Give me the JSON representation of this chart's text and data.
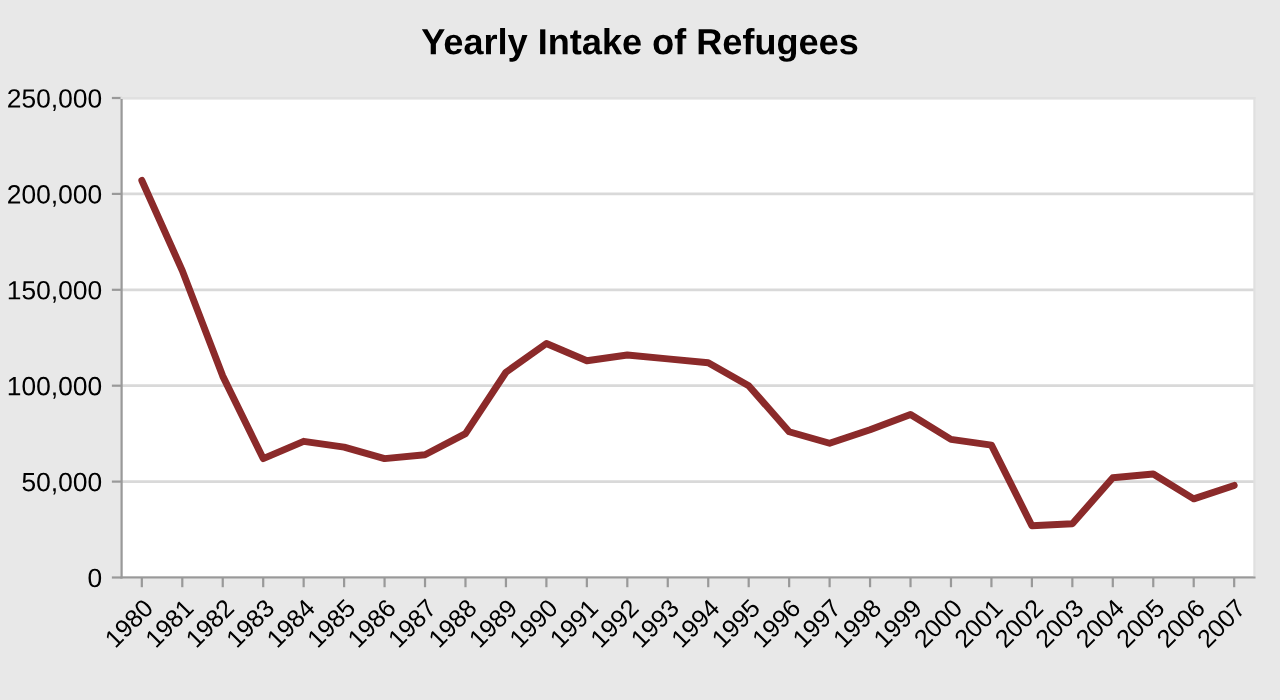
{
  "chart_data": {
    "type": "line",
    "title": "Yearly Intake of Refugees",
    "categories": [
      "1980",
      "1981",
      "1982",
      "1983",
      "1984",
      "1985",
      "1986",
      "1987",
      "1988",
      "1989",
      "1990",
      "1991",
      "1992",
      "1993",
      "1994",
      "1995",
      "1996",
      "1997",
      "1998",
      "1999",
      "2000",
      "2001",
      "2002",
      "2003",
      "2004",
      "2005",
      "2006",
      "2007"
    ],
    "series": [
      {
        "color": "#8b2a2a",
        "values": [
          207000,
          160000,
          105000,
          62000,
          71000,
          68000,
          62000,
          64000,
          75000,
          107000,
          122000,
          113000,
          116000,
          114000,
          112000,
          100000,
          76000,
          70000,
          77000,
          85000,
          72000,
          69000,
          27000,
          28000,
          52000,
          54000,
          41000,
          48000
        ]
      }
    ],
    "ylim": [
      0,
      250000
    ],
    "yticks": [
      {
        "value": 0,
        "label": "0"
      },
      {
        "value": 50000,
        "label": "50,000"
      },
      {
        "value": 100000,
        "label": "100,000"
      },
      {
        "value": 150000,
        "label": "150,000"
      },
      {
        "value": 200000,
        "label": "200,000"
      },
      {
        "value": 250000,
        "label": "250,000"
      }
    ],
    "grid": "y",
    "marker": "none",
    "line_style": "solid"
  }
}
